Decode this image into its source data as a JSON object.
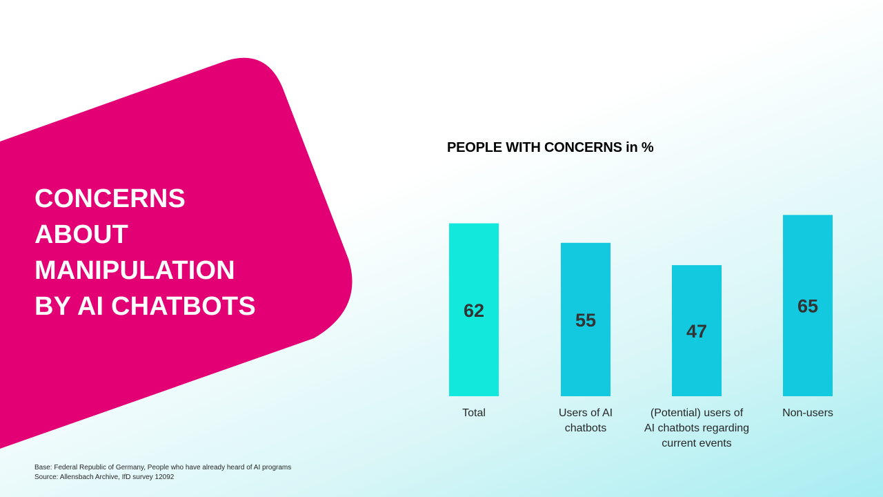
{
  "slide": {
    "headline_lines": [
      "CONCERNS",
      "ABOUT",
      "MANIPULATION",
      "BY AI CHATBOTS"
    ],
    "footnote_base": "Base: Federal Republic of Germany, People who have already heard of AI programs",
    "footnote_source": "Source: Allensbach Archive, IfD survey 12092",
    "accent_color": "#e20074"
  },
  "chart_data": {
    "type": "bar",
    "title": "PEOPLE WITH CONCERNS in %",
    "xlabel": "",
    "ylabel": "",
    "ylim": [
      0,
      100
    ],
    "grid": false,
    "legend": "none",
    "categories": [
      [
        "Total"
      ],
      [
        "Users of AI",
        "chatbots"
      ],
      [
        "(Potential) users of",
        "AI chatbots regarding",
        "current events"
      ],
      [
        "Non-users"
      ]
    ],
    "values": [
      62,
      55,
      47,
      65
    ],
    "bar_colors": [
      "#13e8dc",
      "#12c9df",
      "#12c9df",
      "#12c9df"
    ],
    "label_color": "#333333"
  }
}
